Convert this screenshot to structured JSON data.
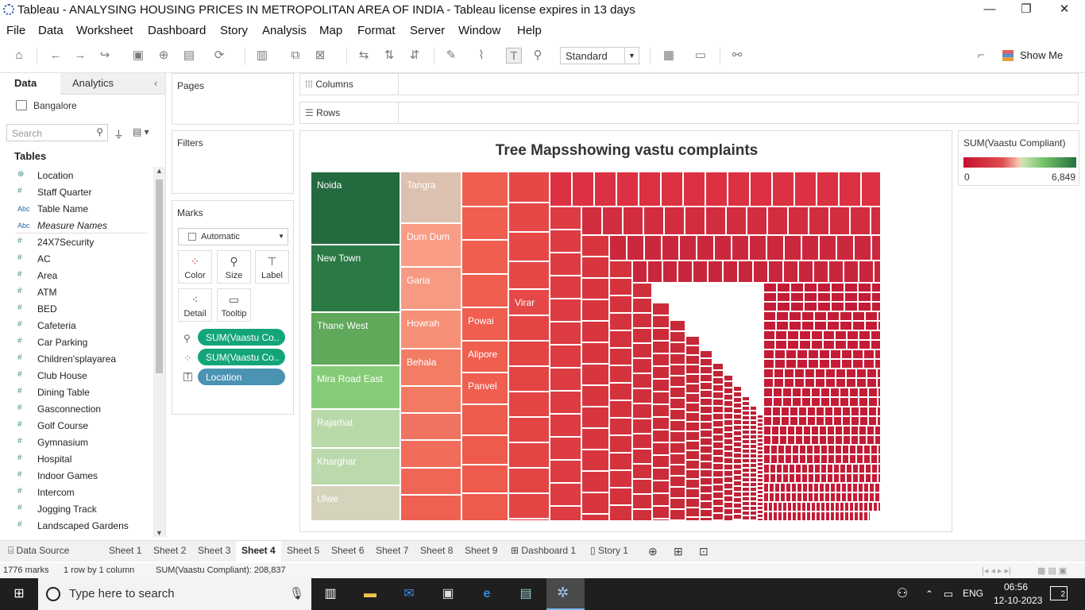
{
  "window": {
    "title": "Tableau - ANALYSING HOUSING PRICES IN METROPOLITAN AREA OF INDIA - Tableau license expires in 13 days"
  },
  "menu": [
    "File",
    "Data",
    "Worksheet",
    "Dashboard",
    "Story",
    "Analysis",
    "Map",
    "Format",
    "Server",
    "Window",
    "Help"
  ],
  "toolbar": {
    "fit_select": "Standard",
    "show_me": "Show Me"
  },
  "left_panel": {
    "tab_data": "Data",
    "tab_analytics": "Analytics",
    "datasource": "Bangalore",
    "search_placeholder": "Search",
    "tables_heading": "Tables",
    "fields": [
      {
        "type": "geo",
        "name": "Location"
      },
      {
        "type": "#",
        "name": "Staff Quarter"
      },
      {
        "type": "Abc",
        "name": "Table Name"
      },
      {
        "type": "Abc",
        "name": "Measure Names"
      },
      {
        "type": "#",
        "name": "24X7Security"
      },
      {
        "type": "#",
        "name": "AC"
      },
      {
        "type": "#",
        "name": "Area"
      },
      {
        "type": "#",
        "name": "ATM"
      },
      {
        "type": "#",
        "name": "BED"
      },
      {
        "type": "#",
        "name": "Cafeteria"
      },
      {
        "type": "#",
        "name": "Car Parking"
      },
      {
        "type": "#",
        "name": "Children'splayarea"
      },
      {
        "type": "#",
        "name": "Club House"
      },
      {
        "type": "#",
        "name": "Dining Table"
      },
      {
        "type": "#",
        "name": "Gasconnection"
      },
      {
        "type": "#",
        "name": "Golf Course"
      },
      {
        "type": "#",
        "name": "Gymnasium"
      },
      {
        "type": "#",
        "name": "Hospital"
      },
      {
        "type": "#",
        "name": "Indoor Games"
      },
      {
        "type": "#",
        "name": "Intercom"
      },
      {
        "type": "#",
        "name": "Jogging Track"
      },
      {
        "type": "#",
        "name": "Landscaped Gardens"
      }
    ]
  },
  "cards": {
    "pages": "Pages",
    "filters": "Filters",
    "marks": "Marks",
    "mark_type": "Automatic",
    "buttons": {
      "color": "Color",
      "size": "Size",
      "label": "Label",
      "detail": "Detail",
      "tooltip": "Tooltip"
    },
    "pills": [
      "SUM(Vaastu Co..",
      "SUM(Vaastu Co..",
      "Location"
    ]
  },
  "shelves": {
    "columns": "Columns",
    "rows": "Rows"
  },
  "chart_data": {
    "type": "treemap",
    "title": "Tree Mapsshowing vastu complaints",
    "labeled_cells": [
      {
        "name": "Noida",
        "color": "#236a3f"
      },
      {
        "name": "New Town",
        "color": "#2b7a45"
      },
      {
        "name": "Thane West",
        "color": "#60a85a"
      },
      {
        "name": "Mira Road East",
        "color": "#86cc78"
      },
      {
        "name": "Rajarhat",
        "color": "#b9d9a8"
      },
      {
        "name": "Kharghar",
        "color": "#bcd9ad"
      },
      {
        "name": "Ulwe",
        "color": "#d6d3bd"
      },
      {
        "name": "Tangra",
        "color": "#dcc0b0"
      },
      {
        "name": "Dum Dum",
        "color": "#f99d87"
      },
      {
        "name": "Garia",
        "color": "#f79a83"
      },
      {
        "name": "Howrah",
        "color": "#f79077"
      },
      {
        "name": "Behala",
        "color": "#f27c64"
      },
      {
        "name": "Powai",
        "color": "#ef5e4f"
      },
      {
        "name": "Alipore",
        "color": "#ef5e4f"
      },
      {
        "name": "Panvel",
        "color": "#ef5e4f"
      },
      {
        "name": "Virar",
        "color": "#e64848"
      }
    ],
    "color_legend": {
      "title": "SUM(Vaastu Compliant)",
      "min": "0",
      "max": "6,849"
    }
  },
  "sheet_tabs": [
    "Data Source",
    "Sheet 1",
    "Sheet 2",
    "Sheet 3",
    "Sheet 4",
    "Sheet 5",
    "Sheet 6",
    "Sheet 7",
    "Sheet 8",
    "Sheet 9",
    "Dashboard 1",
    "Story 1"
  ],
  "active_tab": "Sheet 4",
  "status": {
    "marks": "1776 marks",
    "rows": "1 row by 1 column",
    "sum": "SUM(Vaastu Compliant): 208,837"
  },
  "taskbar": {
    "search_placeholder": "Type here to search",
    "lang": "ENG",
    "time": "06:56",
    "date": "12-10-2023",
    "notif": "2"
  }
}
